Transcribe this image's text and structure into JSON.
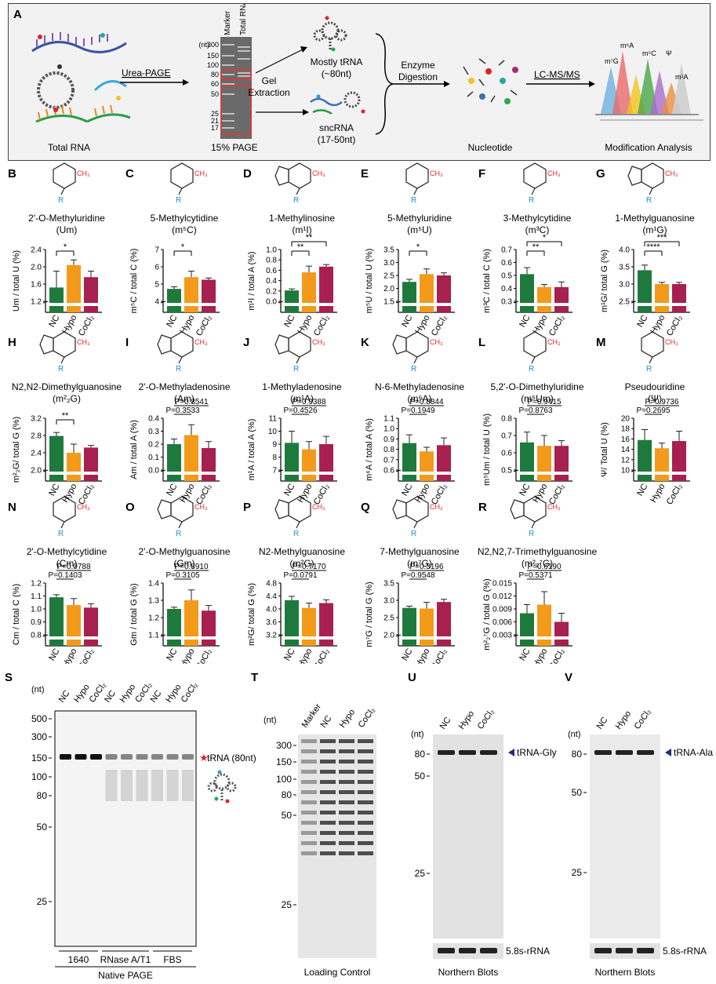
{
  "panelA": {
    "letter": "A",
    "total_rna": "Total RNA",
    "urea_page": "Urea-PAGE",
    "gel_label": "15% PAGE",
    "marker": "Marker",
    "total_rna_lane": "Total RNA",
    "nt": "(nt)",
    "ladder": [
      "300",
      "150",
      "100",
      "80",
      "60",
      "50",
      "25",
      "21",
      "17"
    ],
    "gel_extraction": [
      "Gel",
      "Extraction"
    ],
    "mostly_trna": "Mostly tRNA",
    "mostly_trna_size": "(~80nt)",
    "sncrna": "sncRNA",
    "sncrna_size": "(17-50nt)",
    "enzyme": [
      "Enzyme",
      "Digestion"
    ],
    "nucleotide": "Nucleotide",
    "lcms": "LC-MS/MS",
    "modification": "Modification Analysis",
    "peak_labels": [
      "m⁷G",
      "m⁶A",
      "m⁵C",
      "Ψ",
      "m¹A"
    ]
  },
  "colors": {
    "nc": "#1e7a3c",
    "hypo": "#f39a1b",
    "cocl2": "#a8204f",
    "methyl": "#e8262a",
    "ribose": "#1e90d6"
  },
  "groups": [
    "NC",
    "Hypo",
    "CoCl₂"
  ],
  "chart_data": [
    {
      "type": "bar",
      "letter": "B",
      "name": "2'-O-Methyluridine",
      "abbr": "(Um)",
      "ylabel": "Um / total U (%)",
      "yticks": [
        "1.2",
        "1.6",
        "2.0",
        "2.4"
      ],
      "ylim": [
        1.2,
        2.4
      ],
      "values": [
        1.52,
        2.04,
        1.76
      ],
      "errors": [
        0.38,
        0.12,
        0.14
      ],
      "sig": [
        {
          "a": 0,
          "b": 1,
          "label": "*"
        }
      ]
    },
    {
      "type": "bar",
      "letter": "C",
      "name": "5-Methylcytidine",
      "abbr": "(m⁵C)",
      "ylabel": "m⁵C / total C (%)",
      "yticks": [
        "4",
        "5",
        "6",
        "7"
      ],
      "ylim": [
        4,
        7
      ],
      "values": [
        4.72,
        5.4,
        5.25
      ],
      "errors": [
        0.12,
        0.35,
        0.1
      ],
      "sig": [
        {
          "a": 0,
          "b": 1,
          "label": "*"
        }
      ]
    },
    {
      "type": "bar",
      "letter": "D",
      "name": "1-Methylinosine",
      "abbr": "(m¹I)",
      "ylabel": "m¹I / total A (%)",
      "yticks": [
        "0.0",
        "0.2",
        "0.4",
        "0.6",
        "0.8",
        "1.0"
      ],
      "ylim": [
        0,
        1.0
      ],
      "values": [
        0.21,
        0.56,
        0.67
      ],
      "errors": [
        0.03,
        0.12,
        0.04
      ],
      "sig": [
        {
          "a": 0,
          "b": 1,
          "label": "**"
        },
        {
          "a": 0,
          "b": 2,
          "label": "**"
        }
      ]
    },
    {
      "type": "bar",
      "letter": "E",
      "name": "5-Methyluridine",
      "abbr": "(m⁵U)",
      "ylabel": "m⁵U / total U (%)",
      "yticks": [
        "1.5",
        "2.0",
        "2.5",
        "3.0",
        "3.5"
      ],
      "ylim": [
        1.5,
        3.5
      ],
      "values": [
        2.25,
        2.55,
        2.5
      ],
      "errors": [
        0.1,
        0.2,
        0.1
      ],
      "sig": [
        {
          "a": 0,
          "b": 1,
          "label": "*"
        }
      ]
    },
    {
      "type": "bar",
      "letter": "F",
      "name": "3-Methylcytidine",
      "abbr": "(m³C)",
      "ylabel": "m³C / total C (%)",
      "yticks": [
        "0.3",
        "0.4",
        "0.5",
        "0.6",
        "0.7"
      ],
      "ylim": [
        0.3,
        0.7
      ],
      "values": [
        0.51,
        0.41,
        0.41
      ],
      "errors": [
        0.05,
        0.02,
        0.04
      ],
      "sig": [
        {
          "a": 0,
          "b": 1,
          "label": "**"
        },
        {
          "a": 0,
          "b": 2,
          "label": "*"
        }
      ]
    },
    {
      "type": "bar",
      "letter": "G",
      "name": "1-Methylguanosine",
      "abbr": "(m¹G)",
      "ylabel": "m¹G/ total G (%)",
      "yticks": [
        "2.5",
        "3.0",
        "3.5",
        "4.0"
      ],
      "ylim": [
        2.5,
        4.0
      ],
      "values": [
        3.4,
        3.0,
        3.0
      ],
      "errors": [
        0.15,
        0.05,
        0.05
      ],
      "sig": [
        {
          "a": 0,
          "b": 1,
          "label": "****"
        },
        {
          "a": 0,
          "b": 2,
          "label": "***"
        }
      ]
    },
    {
      "type": "bar",
      "letter": "H",
      "name": "N2,N2-Dimethylguanosine",
      "abbr": "(m²₂G)",
      "ylabel": "m²₂G/ total G (%)",
      "yticks": [
        "2.0",
        "2.4",
        "2.8",
        "3.2"
      ],
      "ylim": [
        2.0,
        3.2
      ],
      "values": [
        2.79,
        2.4,
        2.52
      ],
      "errors": [
        0.08,
        0.2,
        0.05
      ],
      "sig": [
        {
          "a": 0,
          "b": 1,
          "label": "**"
        }
      ]
    },
    {
      "type": "bar",
      "letter": "I",
      "name": "2'-O-Methyladenosine",
      "abbr": "(Am)",
      "ylabel": "Am / total A (%)",
      "yticks": [
        "0.0",
        "0.1",
        "0.2",
        "0.3",
        "0.4"
      ],
      "ylim": [
        0,
        0.4
      ],
      "values": [
        0.2,
        0.27,
        0.17
      ],
      "errors": [
        0.04,
        0.08,
        0.05
      ],
      "sig": [
        {
          "a": 0,
          "b": 1,
          "label": "P=0.3533"
        },
        {
          "a": 0,
          "b": 2,
          "label": "P=0.8541"
        }
      ]
    },
    {
      "type": "bar",
      "letter": "J",
      "name": "1-Methyladenosine",
      "abbr": "(m¹A)",
      "ylabel": "m¹A / total A (%)",
      "yticks": [
        "7",
        "8",
        "9",
        "10",
        "11"
      ],
      "ylim": [
        7,
        11
      ],
      "values": [
        9.1,
        8.6,
        9.0
      ],
      "errors": [
        0.9,
        0.6,
        0.6
      ],
      "sig": [
        {
          "a": 0,
          "b": 1,
          "label": "P=0.4526"
        },
        {
          "a": 0,
          "b": 2,
          "label": "P=0.9388"
        }
      ]
    },
    {
      "type": "bar",
      "letter": "K",
      "name": "N-6-Methyladenosine",
      "abbr": "(m⁶A)",
      "ylabel": "m⁶A / total A (%)",
      "yticks": [
        "0.6",
        "0.7",
        "0.8",
        "0.9",
        "1.0",
        "1.1"
      ],
      "ylim": [
        0.6,
        1.1
      ],
      "values": [
        0.86,
        0.78,
        0.84
      ],
      "errors": [
        0.08,
        0.04,
        0.07
      ],
      "sig": [
        {
          "a": 0,
          "b": 1,
          "label": "P=0.1949"
        },
        {
          "a": 0,
          "b": 2,
          "label": "P=0.8844"
        }
      ]
    },
    {
      "type": "bar",
      "letter": "L",
      "name": "5,2'-O-Dimethyluridine",
      "abbr": "(m⁵Um)",
      "ylabel": "m⁵Um / total U (%)",
      "yticks": [
        "0.5",
        "0.6",
        "0.7",
        "0.8"
      ],
      "ylim": [
        0.5,
        0.8
      ],
      "values": [
        0.66,
        0.64,
        0.64
      ],
      "errors": [
        0.06,
        0.06,
        0.03
      ],
      "sig": [
        {
          "a": 0,
          "b": 1,
          "label": "P=0.8763"
        },
        {
          "a": 0,
          "b": 2,
          "label": "P=0.9415"
        }
      ]
    },
    {
      "type": "bar",
      "letter": "M",
      "name": "Pseudouridine",
      "abbr": "(Ψ)",
      "ylabel": "Ψ/ Total U (%)",
      "yticks": [
        "10",
        "12",
        "14",
        "16",
        "18",
        "20"
      ],
      "ylim": [
        10,
        20
      ],
      "values": [
        15.8,
        14.2,
        15.6
      ],
      "errors": [
        2.0,
        1.0,
        1.9
      ],
      "sig": [
        {
          "a": 0,
          "b": 1,
          "label": "P=0.2695"
        },
        {
          "a": 0,
          "b": 2,
          "label": "P=0.9736"
        }
      ]
    },
    {
      "type": "bar",
      "letter": "N",
      "name": "2'-O-Methylcytidine",
      "abbr": "(Cm)",
      "ylabel": "Cm / total C (%)",
      "yticks": [
        "0.8",
        "0.9",
        "1.0",
        "1.1",
        "1.2"
      ],
      "ylim": [
        0.8,
        1.2
      ],
      "values": [
        1.09,
        1.03,
        1.01
      ],
      "errors": [
        0.02,
        0.05,
        0.03
      ],
      "sig": [
        {
          "a": 0,
          "b": 1,
          "label": "P=0.1403"
        },
        {
          "a": 0,
          "b": 2,
          "label": "P=0.0788"
        }
      ]
    },
    {
      "type": "bar",
      "letter": "O",
      "name": "2'-O-Methylguanosine",
      "abbr": "(Gm)",
      "ylabel": "Gm / total G (%)",
      "yticks": [
        "1.1",
        "1.2",
        "1.3",
        "1.4"
      ],
      "ylim": [
        1.1,
        1.4
      ],
      "values": [
        1.25,
        1.3,
        1.24
      ],
      "errors": [
        0.01,
        0.06,
        0.03
      ],
      "sig": [
        {
          "a": 0,
          "b": 1,
          "label": "P=0.3105"
        },
        {
          "a": 0,
          "b": 2,
          "label": "P=0.8910"
        }
      ]
    },
    {
      "type": "bar",
      "letter": "P",
      "name": "N2-Methylguanosine",
      "abbr": "(m²G)",
      "ylabel": "m²G/ total G (%)",
      "yticks": [
        "3.2",
        "3.6",
        "4.0",
        "4.4",
        "4.8"
      ],
      "ylim": [
        3.2,
        4.8
      ],
      "values": [
        4.27,
        4.03,
        4.18
      ],
      "errors": [
        0.12,
        0.15,
        0.1
      ],
      "sig": [
        {
          "a": 0,
          "b": 1,
          "label": "P=0.0791"
        },
        {
          "a": 0,
          "b": 2,
          "label": "P=0.7170"
        }
      ]
    },
    {
      "type": "bar",
      "letter": "Q",
      "name": "7-Methylguanosine",
      "abbr": "(m⁷G)",
      "ylabel": "m⁷G / total G (%)",
      "yticks": [
        "2.0",
        "2.5",
        "3.0",
        "3.5"
      ],
      "ylim": [
        2.0,
        3.5
      ],
      "values": [
        2.78,
        2.76,
        2.95
      ],
      "errors": [
        0.05,
        0.18,
        0.08
      ],
      "sig": [
        {
          "a": 0,
          "b": 1,
          "label": "P=0.9548"
        },
        {
          "a": 0,
          "b": 2,
          "label": "P=0.3196"
        }
      ]
    },
    {
      "type": "bar",
      "letter": "R",
      "name": "N2,N2,7-Trimethylguanosine",
      "abbr": "(m²₂⁷G)",
      "ylabel": "m²₂⁷G / total G (%)",
      "yticks": [
        "0.003",
        "0.006",
        "0.009",
        "0.012",
        "0.015"
      ],
      "ylim": [
        0.003,
        0.015
      ],
      "values": [
        0.008,
        0.01,
        0.006
      ],
      "errors": [
        0.002,
        0.003,
        0.002
      ],
      "sig": [
        {
          "a": 0,
          "b": 1,
          "label": "P=0.5371"
        },
        {
          "a": 0,
          "b": 2,
          "label": "P=0.6190"
        }
      ]
    }
  ],
  "panelS": {
    "letter": "S",
    "nt": "(nt)",
    "ladder": [
      "500",
      "300",
      "150",
      "100",
      "80",
      "50",
      "25"
    ],
    "lanes": [
      "NC",
      "Hypo",
      "CoCl₂",
      "NC",
      "Hypo",
      "CoCl₂",
      "NC",
      "Hypo",
      "CoCl₂"
    ],
    "trna": "tRNA (80nt)",
    "groups": [
      "1640",
      "RNase A/T1",
      "FBS"
    ],
    "caption": "Native PAGE"
  },
  "panelT": {
    "letter": "T",
    "nt": "(nt)",
    "ladder": [
      "300",
      "150",
      "100",
      "80",
      "50",
      "25"
    ],
    "lanes": [
      "Marker",
      "NC",
      "Hypo",
      "CoCl₂"
    ],
    "caption": "Loading Control"
  },
  "panelU": {
    "letter": "U",
    "nt": "(nt)",
    "ladder": [
      "80",
      "50",
      "25"
    ],
    "lanes": [
      "NC",
      "Hypo",
      "CoCl₂"
    ],
    "band": "tRNA-Gly",
    "loading": "5.8s-rRNA",
    "caption": "Northern Blots"
  },
  "panelV": {
    "letter": "V",
    "nt": "(nt)",
    "ladder": [
      "80",
      "50",
      "25"
    ],
    "lanes": [
      "NC",
      "Hypo",
      "CoCl₂"
    ],
    "band": "tRNA-Ala",
    "loading": "5.8s-rRNA",
    "caption": "Northern Blots"
  }
}
